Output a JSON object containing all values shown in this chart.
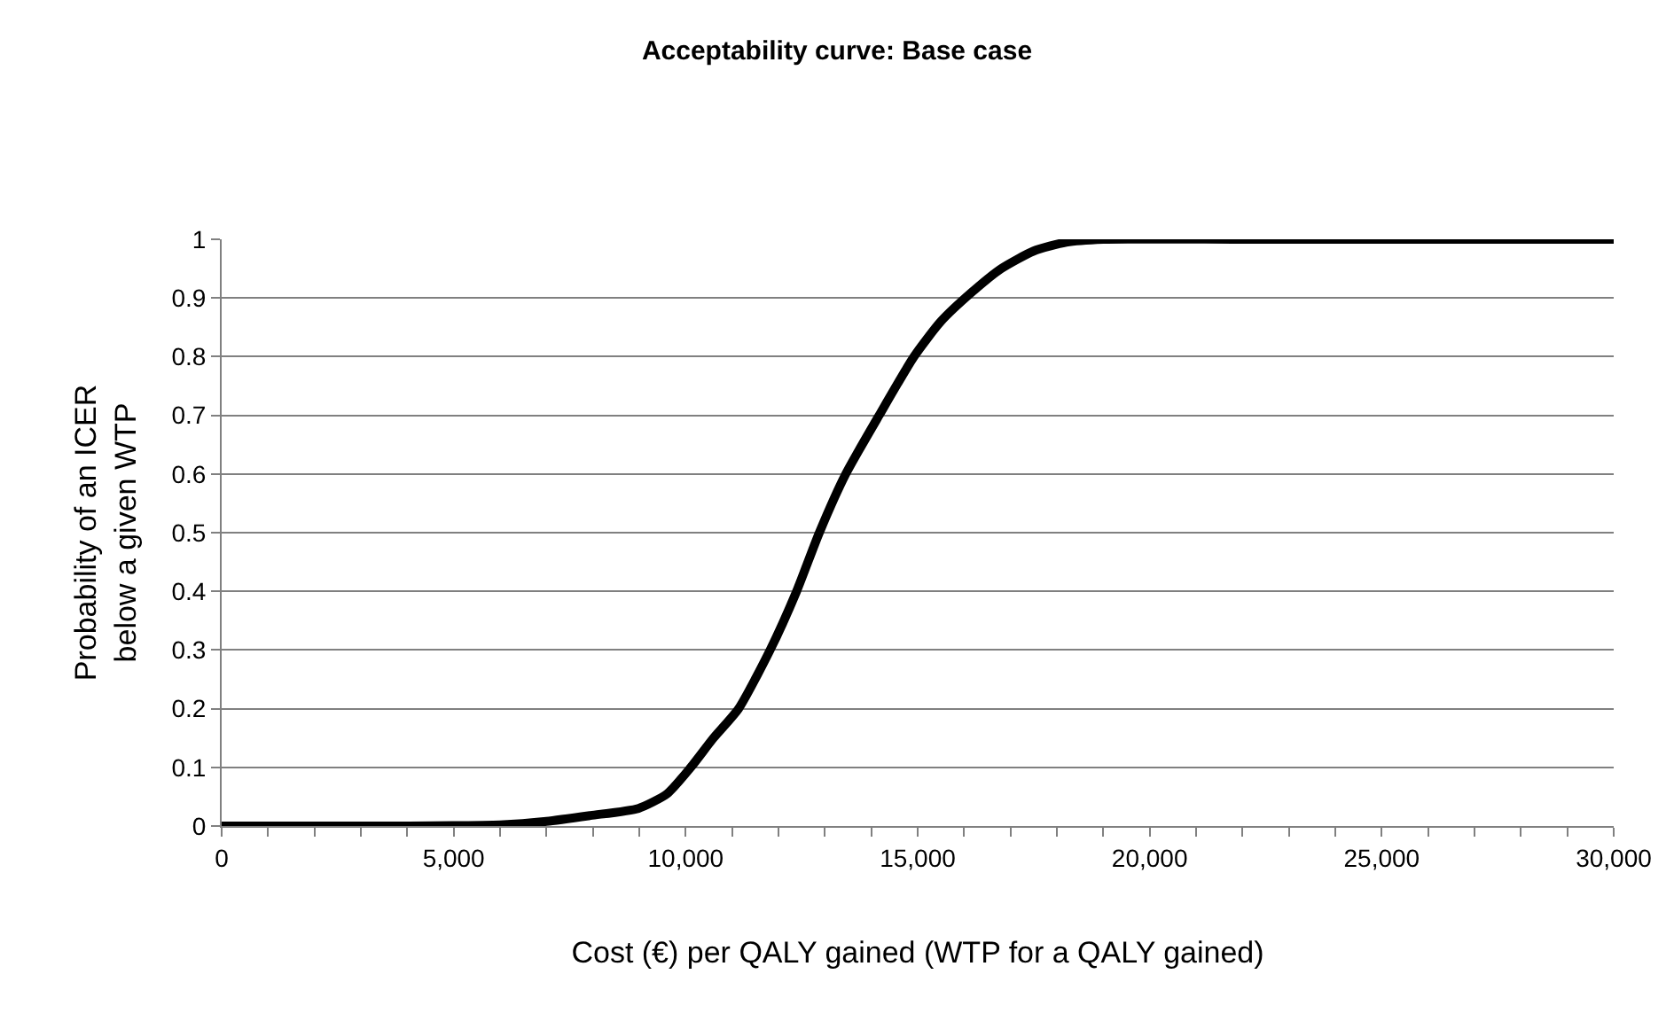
{
  "chart_data": {
    "type": "line",
    "title": "Acceptability curve: Base case",
    "xlabel": "Cost (€) per QALY gained (WTP for a QALY gained)",
    "ylabel": "Probability of an ICER\nbelow a given WTP",
    "x": [
      0,
      2000,
      4000,
      6000,
      7000,
      7950,
      8980,
      9600,
      10110,
      10600,
      11140,
      11820,
      12390,
      12880,
      13450,
      14170,
      14920,
      15500,
      16170,
      16800,
      17500,
      18200,
      19000,
      22000,
      26000,
      30000
    ],
    "series": [
      {
        "color": "#000000",
        "values": [
          0,
          0,
          0,
          0.002,
          0.008,
          0.018,
          0.03,
          0.055,
          0.1,
          0.15,
          0.2,
          0.3,
          0.4,
          0.5,
          0.6,
          0.7,
          0.8,
          0.86,
          0.91,
          0.95,
          0.98,
          0.995,
          1,
          1,
          1,
          1
        ]
      }
    ],
    "xlim": [
      0,
      30000
    ],
    "ylim": [
      0,
      1
    ],
    "xticks": [
      {
        "value": 0,
        "label": "0"
      },
      {
        "value": 1000,
        "label": null
      },
      {
        "value": 2000,
        "label": null
      },
      {
        "value": 3000,
        "label": null
      },
      {
        "value": 4000,
        "label": null
      },
      {
        "value": 5000,
        "label": "5,000"
      },
      {
        "value": 6000,
        "label": null
      },
      {
        "value": 7000,
        "label": null
      },
      {
        "value": 8000,
        "label": null
      },
      {
        "value": 9000,
        "label": null
      },
      {
        "value": 10000,
        "label": "10,000"
      },
      {
        "value": 11000,
        "label": null
      },
      {
        "value": 12000,
        "label": null
      },
      {
        "value": 13000,
        "label": null
      },
      {
        "value": 14000,
        "label": null
      },
      {
        "value": 15000,
        "label": "15,000"
      },
      {
        "value": 16000,
        "label": null
      },
      {
        "value": 17000,
        "label": null
      },
      {
        "value": 18000,
        "label": null
      },
      {
        "value": 19000,
        "label": null
      },
      {
        "value": 20000,
        "label": "20,000"
      },
      {
        "value": 21000,
        "label": null
      },
      {
        "value": 22000,
        "label": null
      },
      {
        "value": 23000,
        "label": null
      },
      {
        "value": 24000,
        "label": null
      },
      {
        "value": 25000,
        "label": "25,000"
      },
      {
        "value": 26000,
        "label": null
      },
      {
        "value": 27000,
        "label": null
      },
      {
        "value": 28000,
        "label": null
      },
      {
        "value": 29000,
        "label": null
      },
      {
        "value": 30000,
        "label": "30,000"
      }
    ],
    "yticks": [
      0,
      0.1,
      0.2,
      0.3,
      0.4,
      0.5,
      0.6,
      0.7,
      0.8,
      0.9,
      1
    ],
    "grid": "y",
    "legend": false,
    "marker": "none",
    "line_style": "solid"
  }
}
